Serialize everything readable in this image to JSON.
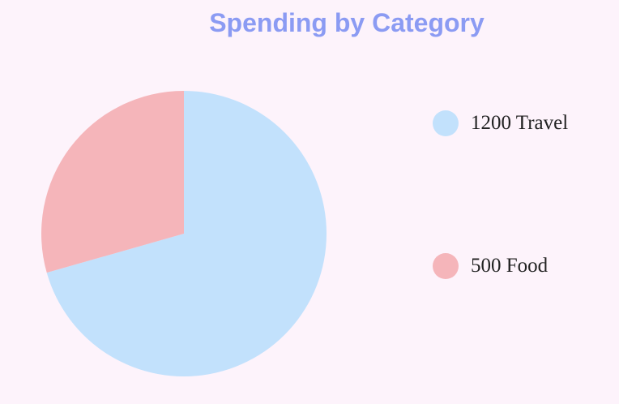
{
  "chart_data": {
    "type": "pie",
    "title": "Spending by Category",
    "categories": [
      "Travel",
      "Food"
    ],
    "values": [
      1200,
      500
    ],
    "colors": [
      "#c2e1fc",
      "#f5b5ba"
    ],
    "legend_labels": [
      "1200 Travel",
      "500 Food"
    ],
    "legend_placement": "right"
  },
  "colors": {
    "background": "#fdf3fb",
    "title": "#8b9bf3"
  }
}
